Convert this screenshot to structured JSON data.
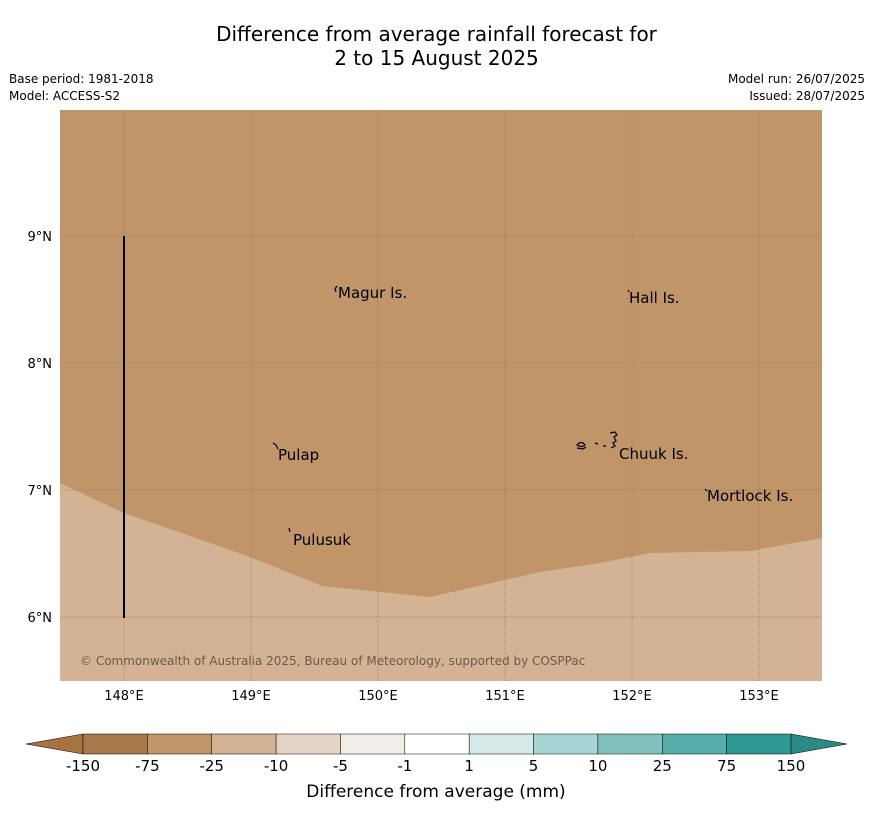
{
  "title": {
    "line1": "Difference from average rainfall forecast for",
    "line2": "2 to 15 August 2025"
  },
  "meta": {
    "base_period": "Base period: 1981-2018",
    "model": "Model: ACCESS-S2",
    "model_run": "Model run: 26/07/2025",
    "issued": "Issued: 28/07/2025"
  },
  "map": {
    "lat_ticks": [
      "9°N",
      "8°N",
      "7°N",
      "6°N"
    ],
    "lon_ticks": [
      "148°E",
      "149°E",
      "150°E",
      "151°E",
      "152°E",
      "153°E"
    ],
    "places": {
      "magur": "Magur Is.",
      "hall": "Hall Is.",
      "pulap": "Pulap",
      "chuuk": "Chuuk Is.",
      "mortlock": "Mortlock Is.",
      "pulusuk": "Pulusuk"
    },
    "copyright": "© Commonwealth of Australia 2025, Bureau of Meteorology, supported by COSPPac",
    "colors": {
      "dry_-75_-25": "#c09569",
      "dry_-25_-10": "#d3b393",
      "land_line": "#000000"
    }
  },
  "colorbar": {
    "title": "Difference from average (mm)",
    "labels": [
      "-150",
      "-75",
      "-25",
      "-10",
      "-5",
      "-1",
      "1",
      "5",
      "10",
      "25",
      "75",
      "150"
    ],
    "colors": [
      "#a87340",
      "#a87a4b",
      "#c09569",
      "#d3b393",
      "#e6d4c4",
      "#f2efe9",
      "#ffffff",
      "#d3eae9",
      "#a8d5d4",
      "#80c1be",
      "#56adaa",
      "#2e9893",
      "#2a8a85"
    ]
  }
}
